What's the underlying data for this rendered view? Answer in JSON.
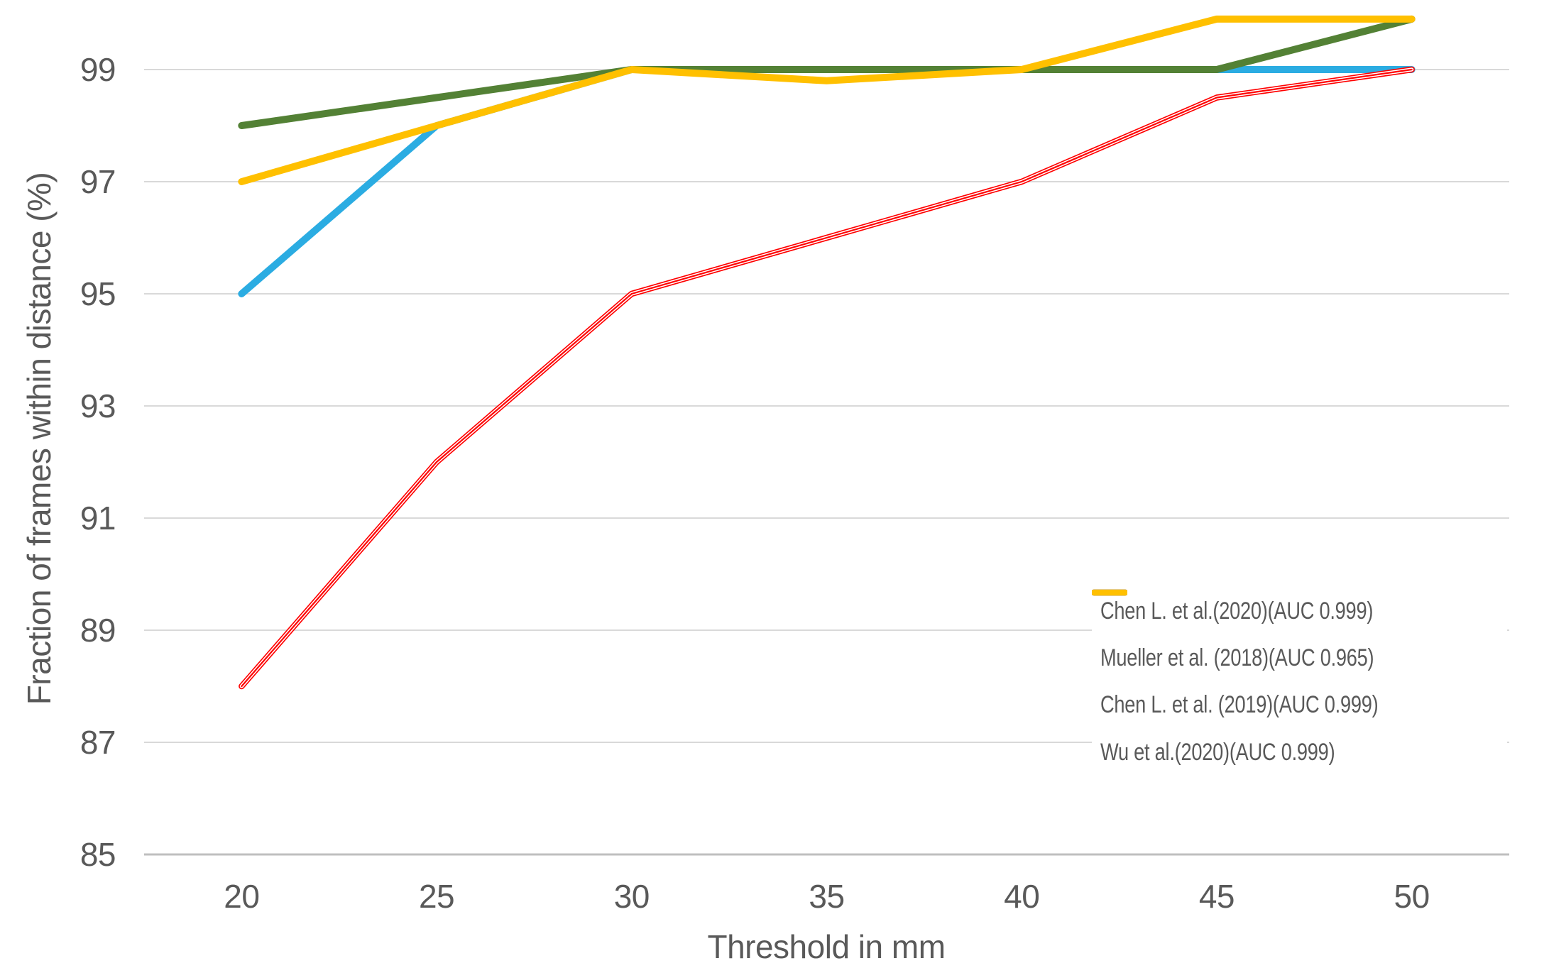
{
  "chart_data": {
    "type": "line",
    "title": "",
    "xlabel": "Threshold in mm",
    "ylabel": "Fraction of frames within distance (%)",
    "x": [
      20,
      25,
      30,
      35,
      40,
      45,
      50
    ],
    "x_ticks": [
      "20",
      "25",
      "30",
      "35",
      "40",
      "45",
      "50"
    ],
    "y_ticks": [
      85,
      87,
      89,
      91,
      93,
      95,
      97,
      99
    ],
    "ylim": [
      85,
      100.05
    ],
    "grid": "horizontal",
    "legend_position": "inside-right",
    "series": [
      {
        "name": "Chen L. et al.(2020)(AUC 0.999)",
        "color": "#2BACE2",
        "style": "solid",
        "values": [
          95,
          98,
          99,
          99,
          99,
          99,
          99
        ]
      },
      {
        "name": "Mueller et al. (2018)(AUC 0.965)",
        "color": "#FF0000",
        "style": "striped",
        "values": [
          88,
          92,
          95,
          96,
          97,
          98.5,
          99
        ]
      },
      {
        "name": "Chen L. et al. (2019)(AUC 0.999)",
        "color": "#538135",
        "style": "solid",
        "values": [
          98,
          98.5,
          99,
          99,
          99,
          99,
          99.9
        ]
      },
      {
        "name": "Wu et al.(2020)(AUC 0.999)",
        "color": "#FFC000",
        "style": "solid",
        "values": [
          97,
          98,
          99,
          98.8,
          99,
          99.9,
          99.9
        ]
      }
    ],
    "colors": {
      "text": "#595959",
      "grid": "#D9D9D9",
      "axis": "#BFBFBF",
      "background": "#FFFFFF"
    }
  }
}
